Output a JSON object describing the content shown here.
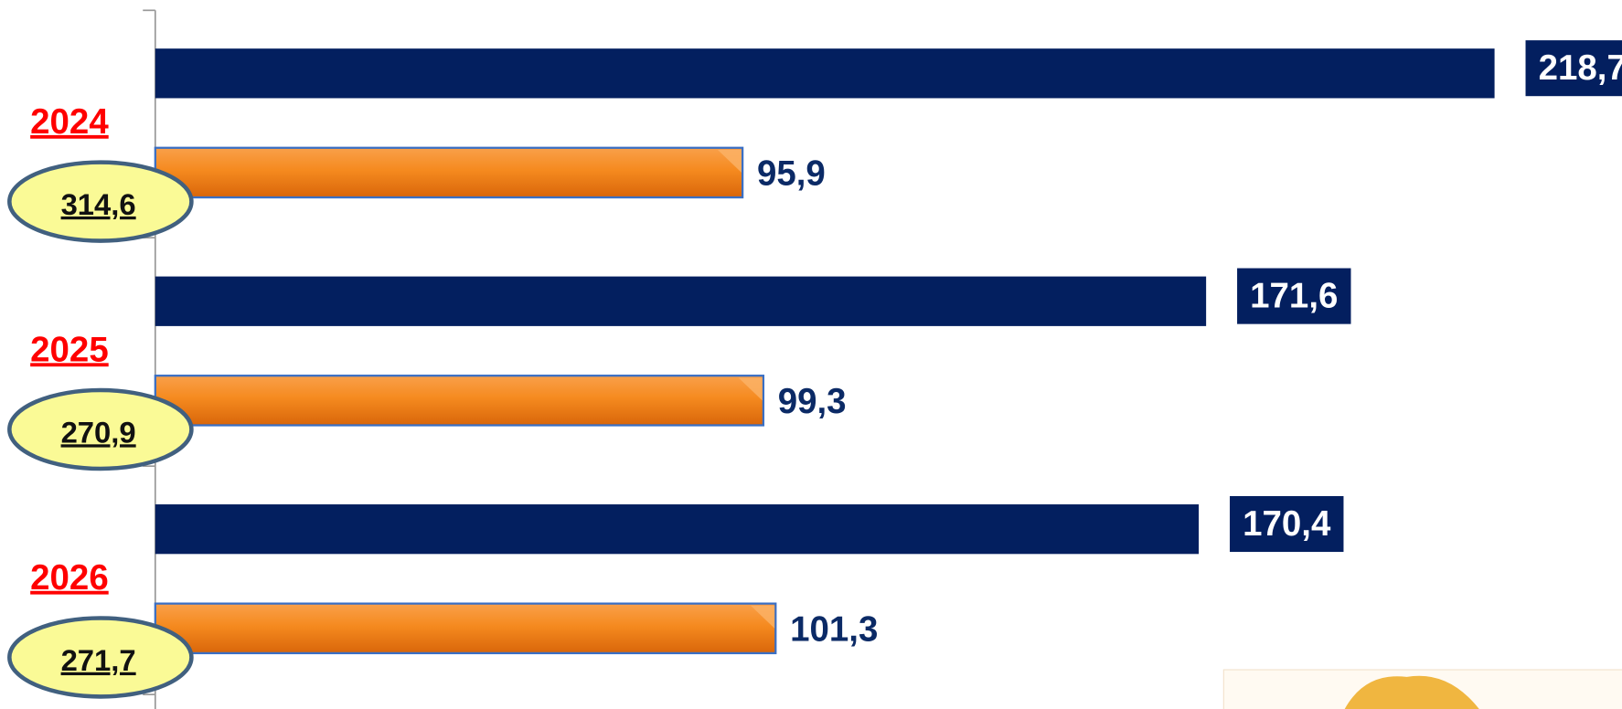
{
  "chart_data": {
    "type": "bar",
    "orientation": "horizontal",
    "categories": [
      "2024",
      "2025",
      "2026"
    ],
    "category_color": "#ff0000",
    "series": [
      {
        "color": "#031f5f",
        "values": [
          218.7,
          171.6,
          170.4
        ],
        "value_labels": [
          "218,7",
          "171,6",
          "170,4"
        ]
      },
      {
        "color": "#f07d12",
        "values": [
          95.9,
          99.3,
          101.3
        ],
        "value_labels": [
          "95,9",
          "99,3",
          "101,3"
        ]
      }
    ],
    "totals": [
      314.6,
      270.9,
      271.7
    ],
    "total_labels": [
      "314,6",
      "270,9",
      "271,7"
    ],
    "total_color": "#fafa96",
    "xlim": [
      0,
      240
    ]
  }
}
